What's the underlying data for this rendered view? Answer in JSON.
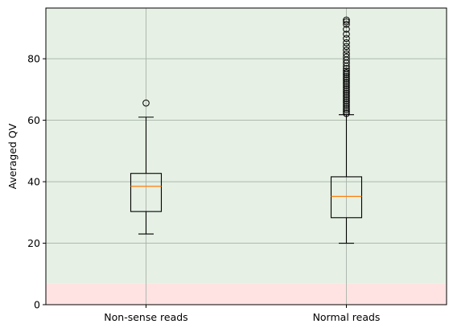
{
  "chart_data": {
    "type": "box",
    "ylabel": "Averaged QV",
    "xlabel": "",
    "title": "",
    "ylim": [
      0,
      96.5
    ],
    "yticks": [
      0,
      20,
      40,
      60,
      80
    ],
    "grid": true,
    "bands": [
      {
        "from": 0,
        "to": 7,
        "color": "#ffe3e3"
      },
      {
        "from": 7,
        "to": 96.5,
        "color": "#e6f0e4"
      }
    ],
    "colors": {
      "box": "#000000",
      "median": "#ff7f0e",
      "grid": "#a7b2a8"
    },
    "categories": [
      "Non-sense reads",
      "Normal reads"
    ],
    "boxes": [
      {
        "name": "Non-sense reads",
        "whisker_low": 23,
        "q1": 30.3,
        "median": 38.5,
        "q3": 42.7,
        "whisker_high": 61,
        "outliers": [
          65.6
        ]
      },
      {
        "name": "Normal reads",
        "whisker_low": 20,
        "q1": 28.3,
        "median": 35.2,
        "q3": 41.6,
        "whisker_high": 61.8,
        "outliers": [
          62.2,
          62.8,
          63.4,
          64.0,
          64.6,
          65.2,
          65.8,
          66.4,
          67.0,
          67.6,
          68.2,
          68.8,
          69.4,
          70.0,
          70.6,
          71.2,
          71.8,
          72.4,
          73.0,
          73.6,
          74.2,
          74.8,
          75.4,
          76.0,
          76.8,
          77.6,
          78.6,
          79.6,
          80.6,
          81.6,
          82.8,
          84.0,
          85.2,
          86.6,
          88.0,
          89.6,
          91.2,
          92.0,
          92.6
        ]
      }
    ]
  }
}
